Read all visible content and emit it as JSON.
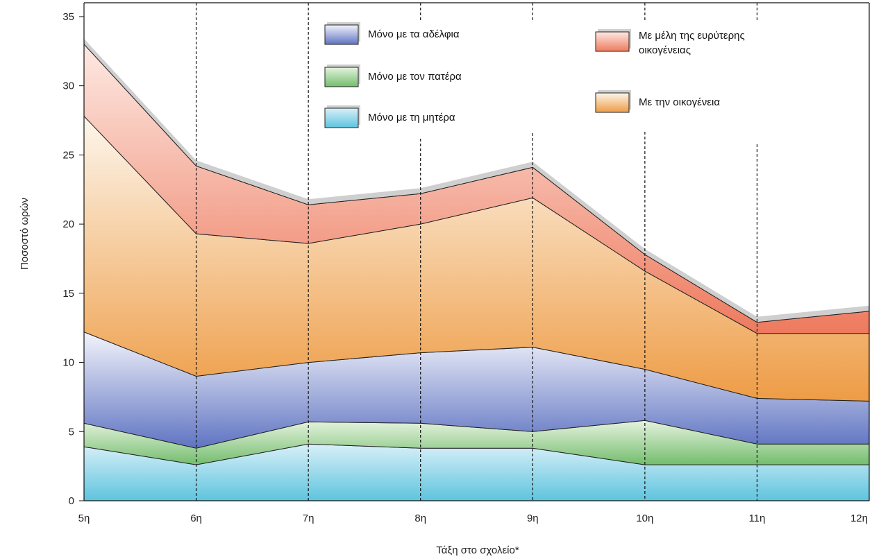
{
  "chart_data": {
    "type": "area",
    "stacked": true,
    "title": "",
    "xlabel": "Τάξη στο σχολείο*",
    "ylabel": "Ποσοστό ωρών",
    "categories": [
      "5η",
      "6η",
      "7η",
      "8η",
      "9η",
      "10η",
      "11η",
      "12η"
    ],
    "ylim": [
      0,
      36
    ],
    "yticks": [
      0,
      5,
      10,
      15,
      20,
      25,
      30,
      35
    ],
    "grid": "vertical dashed lines at each category",
    "legend": "top, two columns inside plot",
    "series": [
      {
        "name": "Μόνο με τη μητέρα",
        "values": [
          3.9,
          2.6,
          4.1,
          3.8,
          3.8,
          2.6,
          2.6,
          2.6
        ],
        "color_top": "#d8f0f8",
        "color_bottom": "#5ec4de"
      },
      {
        "name": "Μόνο με τον πατέρα",
        "values": [
          1.7,
          1.2,
          1.6,
          1.8,
          1.2,
          3.2,
          1.5,
          1.5
        ],
        "color_top": "#e6f3e0",
        "color_bottom": "#73bd6d"
      },
      {
        "name": "Μόνο με τα αδέλφια",
        "values": [
          6.6,
          5.2,
          4.3,
          5.1,
          6.1,
          3.7,
          3.3,
          3.1
        ],
        "color_top": "#f3f4fb",
        "color_bottom": "#5f74c2"
      },
      {
        "name": "Με την οικογένεια",
        "values": [
          15.6,
          10.3,
          8.6,
          9.3,
          10.8,
          7.1,
          4.7,
          4.9
        ],
        "color_top": "#fdf6ec",
        "color_bottom": "#ee9c45"
      },
      {
        "name": "Με μέλη της ευρύτερης οικογένειας",
        "values": [
          5.2,
          4.9,
          2.8,
          2.2,
          2.2,
          1.2,
          0.8,
          1.6
        ],
        "color_top": "#fde9e3",
        "color_bottom": "#ee7a5e"
      }
    ],
    "legend_order": [
      "Μόνο με τα αδέλφια",
      "Μόνο με τον πατέρα",
      "Μόνο με τη μητέρα",
      "Με μέλη της ευρύτερης οικογένειας",
      "Με την οικογένεια"
    ]
  }
}
